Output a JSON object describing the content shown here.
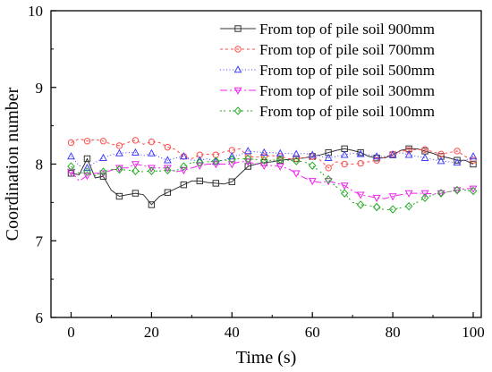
{
  "chart_data": {
    "type": "line",
    "xlabel": "Time (s)",
    "ylabel": "Coordination number",
    "xlim": [
      -5,
      102
    ],
    "ylim": [
      6,
      10
    ],
    "xticks": [
      0,
      20,
      40,
      60,
      80,
      100
    ],
    "yticks": [
      6,
      7,
      8,
      9,
      10
    ],
    "xtick_labels": [
      "0",
      "20",
      "40",
      "60",
      "80",
      "100"
    ],
    "ytick_labels": [
      "6",
      "7",
      "8",
      "9",
      "10"
    ],
    "grid": false,
    "legend_position": "top-right",
    "series": [
      {
        "name": "From top of pile soil 900mm",
        "color": "#333333",
        "dash": "solid",
        "marker": "square",
        "x": [
          0,
          2,
          4,
          6,
          8,
          10,
          12,
          14,
          16,
          18,
          20,
          22,
          24,
          26,
          28,
          30,
          32,
          34,
          36,
          38,
          40,
          42,
          44,
          46,
          48,
          50,
          52,
          54,
          56,
          58,
          60,
          62,
          64,
          66,
          68,
          70,
          72,
          74,
          76,
          78,
          80,
          82,
          84,
          86,
          88,
          90,
          92,
          94,
          96,
          98,
          100
        ],
        "y": [
          7.88,
          7.86,
          8.07,
          7.82,
          7.84,
          7.66,
          7.58,
          7.6,
          7.62,
          7.6,
          7.47,
          7.58,
          7.63,
          7.68,
          7.73,
          7.78,
          7.78,
          7.76,
          7.75,
          7.74,
          7.77,
          7.87,
          7.97,
          8.0,
          8.02,
          8.03,
          8.05,
          8.06,
          8.07,
          8.08,
          8.1,
          8.12,
          8.15,
          8.18,
          8.2,
          8.18,
          8.15,
          8.1,
          8.08,
          8.08,
          8.12,
          8.18,
          8.2,
          8.2,
          8.17,
          8.14,
          8.1,
          8.08,
          8.05,
          8.05,
          8.0
        ]
      },
      {
        "name": "From top of pile soil 700mm",
        "color": "#ff4d4d",
        "dash": "3,3",
        "marker": "circle",
        "x": [
          0,
          2,
          4,
          6,
          8,
          10,
          12,
          14,
          16,
          18,
          20,
          22,
          24,
          26,
          28,
          30,
          32,
          34,
          36,
          38,
          40,
          42,
          44,
          46,
          48,
          50,
          52,
          54,
          56,
          58,
          60,
          62,
          64,
          66,
          68,
          70,
          72,
          74,
          76,
          78,
          80,
          82,
          84,
          86,
          88,
          90,
          92,
          94,
          96,
          98,
          100
        ],
        "y": [
          8.28,
          8.33,
          8.3,
          8.32,
          8.3,
          8.26,
          8.24,
          8.28,
          8.31,
          8.26,
          8.29,
          8.28,
          8.22,
          8.19,
          8.1,
          8.07,
          8.12,
          8.13,
          8.12,
          8.16,
          8.18,
          8.2,
          8.1,
          8.09,
          8.1,
          8.11,
          8.1,
          8.07,
          8.07,
          8.08,
          8.1,
          8.05,
          7.95,
          8.03,
          8.0,
          8.0,
          8.01,
          8.03,
          8.05,
          8.09,
          8.13,
          8.17,
          8.18,
          8.19,
          8.19,
          8.16,
          8.13,
          8.15,
          8.17,
          8.1,
          8.05
        ]
      },
      {
        "name": "From top of pile soil 500mm",
        "color": "#4040ff",
        "dash": "1,2.5",
        "marker": "triangle-up",
        "x": [
          0,
          2,
          4,
          6,
          8,
          10,
          12,
          14,
          16,
          18,
          20,
          22,
          24,
          26,
          28,
          30,
          32,
          34,
          36,
          38,
          40,
          42,
          44,
          46,
          48,
          50,
          52,
          54,
          56,
          58,
          60,
          62,
          64,
          66,
          68,
          70,
          72,
          74,
          76,
          78,
          80,
          82,
          84,
          86,
          88,
          90,
          92,
          94,
          96,
          98,
          100
        ],
        "y": [
          8.1,
          7.98,
          7.95,
          8.02,
          8.08,
          8.12,
          8.14,
          8.15,
          8.15,
          8.11,
          8.14,
          8.09,
          8.05,
          8.08,
          8.1,
          8.05,
          8.05,
          8.07,
          8.03,
          8.05,
          8.1,
          8.12,
          8.17,
          8.16,
          8.15,
          8.15,
          8.14,
          8.14,
          8.13,
          8.14,
          8.12,
          8.1,
          8.08,
          8.1,
          8.12,
          8.14,
          8.13,
          8.12,
          8.1,
          8.1,
          8.12,
          8.15,
          8.12,
          8.1,
          8.08,
          8.06,
          8.04,
          8.03,
          8.02,
          8.05,
          8.1
        ]
      },
      {
        "name": "From top of pile soil 300mm",
        "color": "#ee22ee",
        "dash": "8,3,2,3",
        "marker": "triangle-down",
        "x": [
          0,
          2,
          4,
          6,
          8,
          10,
          12,
          14,
          16,
          18,
          20,
          22,
          24,
          26,
          28,
          30,
          32,
          34,
          36,
          38,
          40,
          42,
          44,
          46,
          48,
          50,
          52,
          54,
          56,
          58,
          60,
          62,
          64,
          66,
          68,
          70,
          72,
          74,
          76,
          78,
          80,
          82,
          84,
          86,
          88,
          90,
          92,
          94,
          96,
          98,
          100
        ],
        "y": [
          7.9,
          7.78,
          7.85,
          7.88,
          7.88,
          7.92,
          7.95,
          7.95,
          8.0,
          7.98,
          7.95,
          7.95,
          7.95,
          7.9,
          7.92,
          7.95,
          7.98,
          8.0,
          8.0,
          8.0,
          8.0,
          8.03,
          8.03,
          8.0,
          7.98,
          7.98,
          7.97,
          7.94,
          7.88,
          7.82,
          7.78,
          7.76,
          7.78,
          7.75,
          7.72,
          7.65,
          7.6,
          7.58,
          7.56,
          7.55,
          7.58,
          7.6,
          7.62,
          7.62,
          7.62,
          7.61,
          7.62,
          7.64,
          7.66,
          7.68,
          7.68
        ]
      },
      {
        "name": "From top of pile soil 100mm",
        "color": "#22aa22",
        "dash": "2,2,2,4",
        "marker": "diamond",
        "x": [
          0,
          2,
          4,
          6,
          8,
          10,
          12,
          14,
          16,
          18,
          20,
          22,
          24,
          26,
          28,
          30,
          32,
          34,
          36,
          38,
          40,
          42,
          44,
          46,
          48,
          50,
          52,
          54,
          56,
          58,
          60,
          62,
          64,
          66,
          68,
          70,
          72,
          74,
          76,
          78,
          80,
          82,
          84,
          86,
          88,
          90,
          92,
          94,
          96,
          98,
          100
        ],
        "y": [
          7.97,
          7.88,
          7.9,
          7.85,
          7.9,
          7.93,
          7.93,
          7.92,
          7.91,
          7.9,
          7.91,
          7.91,
          7.92,
          7.91,
          7.97,
          8.02,
          8.02,
          8.03,
          8.04,
          8.05,
          8.06,
          8.07,
          8.07,
          8.06,
          8.05,
          8.05,
          8.06,
          8.05,
          8.04,
          8.03,
          7.98,
          7.9,
          7.8,
          7.7,
          7.62,
          7.5,
          7.47,
          7.46,
          7.44,
          7.4,
          7.41,
          7.43,
          7.45,
          7.5,
          7.56,
          7.6,
          7.62,
          7.64,
          7.66,
          7.66,
          7.65
        ]
      }
    ]
  }
}
